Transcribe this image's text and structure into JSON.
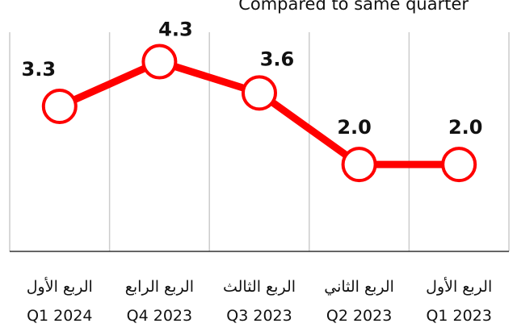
{
  "chart_data": {
    "type": "line",
    "subtitle": "Compared to same quarter",
    "categories": [
      "Q1 2024",
      "Q4 2023",
      "Q3 2023",
      "Q2 2023",
      "Q1 2023"
    ],
    "categories_ar": [
      "الربع الأول",
      "الربع الرابع",
      "الربع الثالث",
      "الربع الثاني",
      "الربع الأول"
    ],
    "series": [
      {
        "name": null,
        "color": "#ff0000",
        "values": [
          3.3,
          4.3,
          3.6,
          2.0,
          2.0
        ],
        "value_labels": [
          "3.3",
          "4.3",
          "3.6",
          "2.0",
          "2.0"
        ]
      }
    ],
    "ylim": [
      0,
      5.5
    ]
  }
}
